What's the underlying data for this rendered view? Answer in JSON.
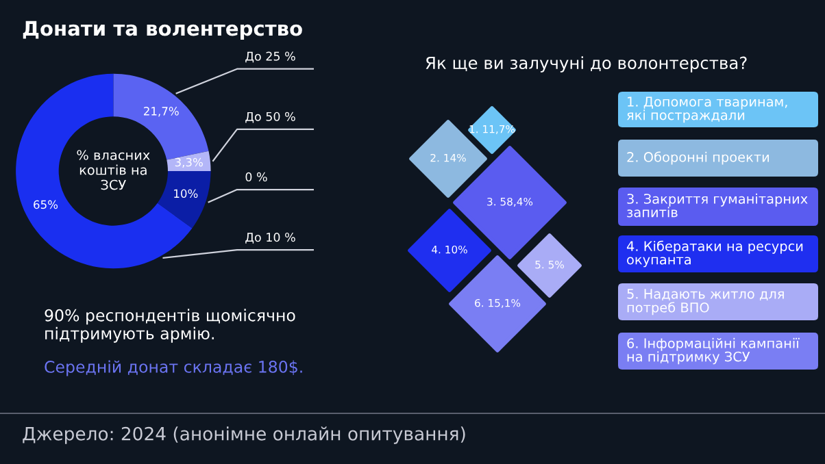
{
  "chart_data": [
    {
      "type": "donut",
      "title": "Донати та волентерство",
      "categories": [
        "До 25 %",
        "До 50 %",
        "0 %",
        "До 10 %"
      ],
      "values": [
        21.7,
        3.3,
        10,
        65
      ],
      "value_labels": [
        "21,7%",
        "3,3%",
        "10%",
        "65%"
      ],
      "colors": [
        "#5a63f2",
        "#b3b6f8",
        "#0b1ea6",
        "#1a2ff0"
      ],
      "annotations": [
        "% власних коштів на ЗСУ",
        "90% респондентів щомісячно підтримують армію.",
        "Середній донат складає 180$.",
        "Джерело: 2024 (анонімне онлайн опитування)"
      ]
    },
    {
      "type": "other",
      "title": "Як ще ви залучуні до волонтерства?",
      "categories": [
        "1. Допомога тваринам, які постраждали",
        "2. Оборонні проекти",
        "3. Закриття гуманітарних запитів",
        "4. Кібератаки на ресурси окупанта",
        "5. Надають житло для потреб ВПО",
        "6. Інформаційні кампанії на підтримку ЗСУ"
      ],
      "values": [
        11.7,
        14,
        58.4,
        10,
        5,
        15.1
      ],
      "value_labels": [
        "1. 11,7%",
        "2. 14%",
        "3. 58,4%",
        "4. 10%",
        "5. 5%",
        "6. 15,1%"
      ],
      "colors": [
        "#6cc4f6",
        "#8db9e0",
        "#5a5cf0",
        "#1f2ff0",
        "#a9acf6",
        "#7a7ef3"
      ]
    }
  ]
}
